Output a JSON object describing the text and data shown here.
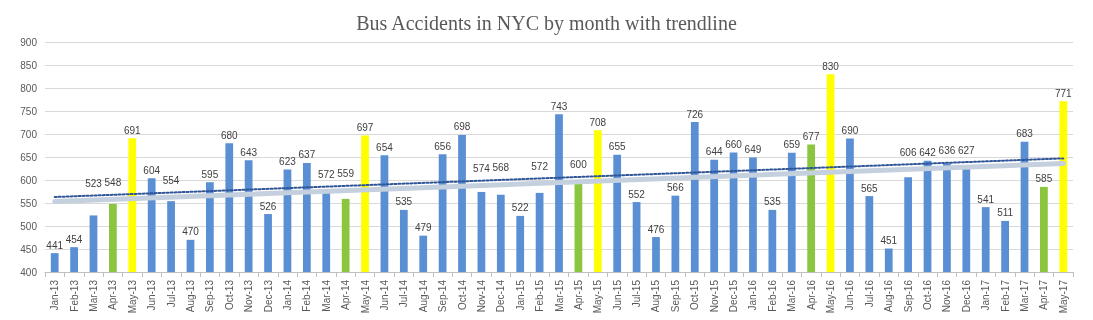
{
  "chart_data": {
    "type": "bar",
    "title": "Bus Accidents in NYC by month with trendline",
    "categories": [
      "Jan-13",
      "Feb-13",
      "Mar-13",
      "Apr-13",
      "May-13",
      "Jun-13",
      "Jul-13",
      "Aug-13",
      "Sep-13",
      "Oct-13",
      "Nov-13",
      "Dec-13",
      "Jan-14",
      "Feb-14",
      "Mar-14",
      "Apr-14",
      "May-14",
      "Jun-14",
      "Jul-14",
      "Aug-14",
      "Sep-14",
      "Oct-14",
      "Nov-14",
      "Dec-14",
      "Jan-15",
      "Feb-15",
      "Mar-15",
      "Apr-15",
      "May-15",
      "Jun-15",
      "Jul-15",
      "Aug-15",
      "Sep-15",
      "Oct-15",
      "Nov-15",
      "Dec-15",
      "Jan-16",
      "Feb-16",
      "Mar-16",
      "Apr-16",
      "May-16",
      "Jun-16",
      "Jul-16",
      "Aug-16",
      "Sep-16",
      "Oct-16",
      "Nov-16",
      "Dec-16",
      "Jan-17",
      "Feb-17",
      "Mar-17",
      "Apr-17",
      "May-17"
    ],
    "series": [
      {
        "value_labels": [
          "441",
          "454",
          "523",
          "548",
          "691",
          "604",
          "554",
          "470",
          "595",
          "680",
          "643",
          "526",
          "623",
          "637",
          "572",
          "559",
          "697",
          "654",
          "535",
          "479",
          "656",
          "698",
          "574",
          "568",
          "522",
          "572",
          "743",
          "600",
          "708",
          "655",
          "552",
          "476",
          "566",
          "726",
          "644",
          "660",
          "649",
          "535",
          "659",
          "677",
          "830",
          "690",
          "565",
          "451",
          "606",
          "642",
          "636",
          "627",
          "541",
          "511",
          "683",
          "585",
          "771"
        ],
        "values": [
          441,
          454,
          523,
          548,
          691,
          604,
          554,
          470,
          595,
          680,
          643,
          526,
          623,
          637,
          572,
          559,
          697,
          654,
          535,
          479,
          656,
          698,
          574,
          568,
          522,
          572,
          743,
          600,
          708,
          655,
          552,
          476,
          566,
          726,
          644,
          660,
          649,
          535,
          659,
          677,
          830,
          690,
          565,
          451,
          606,
          642,
          636,
          627,
          541,
          511,
          683,
          585,
          771
        ],
        "colors": [
          "#5b8fd4",
          "#5b8fd4",
          "#5b8fd4",
          "#8cc63f",
          "#ffff00",
          "#5b8fd4",
          "#5b8fd4",
          "#5b8fd4",
          "#5b8fd4",
          "#5b8fd4",
          "#5b8fd4",
          "#5b8fd4",
          "#5b8fd4",
          "#5b8fd4",
          "#5b8fd4",
          "#8cc63f",
          "#ffff00",
          "#5b8fd4",
          "#5b8fd4",
          "#5b8fd4",
          "#5b8fd4",
          "#5b8fd4",
          "#5b8fd4",
          "#5b8fd4",
          "#5b8fd4",
          "#5b8fd4",
          "#5b8fd4",
          "#8cc63f",
          "#ffff00",
          "#5b8fd4",
          "#5b8fd4",
          "#5b8fd4",
          "#5b8fd4",
          "#5b8fd4",
          "#5b8fd4",
          "#5b8fd4",
          "#5b8fd4",
          "#5b8fd4",
          "#5b8fd4",
          "#8cc63f",
          "#ffff00",
          "#5b8fd4",
          "#5b8fd4",
          "#5b8fd4",
          "#5b8fd4",
          "#5b8fd4",
          "#5b8fd4",
          "#5b8fd4",
          "#5b8fd4",
          "#5b8fd4",
          "#5b8fd4",
          "#8cc63f",
          "#ffff00"
        ]
      },
      {
        "type": "line",
        "x": [
          "Jan-13",
          "May-17"
        ],
        "values": [
          553,
          636
        ],
        "color": "#c5d0de",
        "line_style": "solid"
      },
      {
        "type": "line",
        "x": [
          "Jan-13",
          "May-17"
        ],
        "values": [
          563,
          647
        ],
        "color": "#2f5597",
        "line_style": "dotted"
      }
    ],
    "ylim": [
      400,
      900
    ],
    "yticks": [
      400,
      450,
      500,
      550,
      600,
      650,
      700,
      750,
      800,
      850,
      900
    ],
    "grid": "y"
  }
}
